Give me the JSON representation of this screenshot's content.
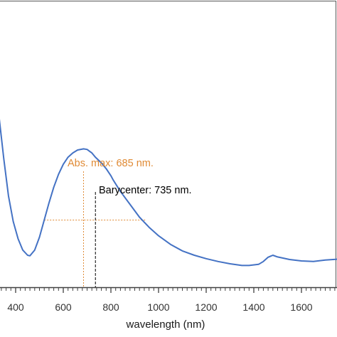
{
  "chart_data": {
    "type": "line",
    "xlabel": "wavelength (nm)",
    "ylabel": "",
    "xlim": [
      310,
      1780
    ],
    "ylim": [
      0,
      1
    ],
    "y_axis_visible": false,
    "grid": false,
    "legend": "none",
    "x_ticks": [
      400,
      600,
      800,
      1000,
      1200,
      1400,
      1600
    ],
    "x_tick_labels": [
      "400",
      "600",
      "800",
      "1000",
      "1200",
      "1400",
      "1600"
    ],
    "x_minor_tick_step": 20,
    "series": [
      {
        "color": "#4472c4",
        "x": [
          310,
          330,
          350,
          370,
          390,
          410,
          430,
          450,
          460,
          480,
          500,
          520,
          540,
          560,
          580,
          600,
          620,
          640,
          660,
          685,
          700,
          720,
          735,
          760,
          780,
          800,
          810,
          840,
          880,
          920,
          960,
          1000,
          1050,
          1100,
          1150,
          1200,
          1250,
          1300,
          1350,
          1380,
          1420,
          1440,
          1460,
          1480,
          1500,
          1550,
          1600,
          1650,
          1700,
          1780
        ],
        "y": [
          0.75,
          0.6,
          0.45,
          0.32,
          0.23,
          0.17,
          0.13,
          0.112,
          0.11,
          0.13,
          0.175,
          0.235,
          0.295,
          0.35,
          0.395,
          0.43,
          0.455,
          0.47,
          0.48,
          0.484,
          0.482,
          0.47,
          0.455,
          0.435,
          0.415,
          0.39,
          0.375,
          0.335,
          0.29,
          0.245,
          0.21,
          0.18,
          0.15,
          0.127,
          0.112,
          0.1,
          0.09,
          0.082,
          0.076,
          0.076,
          0.08,
          0.09,
          0.105,
          0.112,
          0.106,
          0.097,
          0.092,
          0.09,
          0.095,
          0.1
        ]
      }
    ],
    "annotations": [
      {
        "text": "Abs. max: 685 nm.",
        "color": "#e08a34",
        "x": 685,
        "y": 0.484,
        "line_style": "dashed"
      },
      {
        "text": "Barycenter: 735 nm.",
        "color": "#000000",
        "x": 735,
        "line_style": "dashed"
      }
    ],
    "crosshair": {
      "color": "#e08a34",
      "x_from": 520,
      "x_to": 950,
      "y": 0.235
    }
  }
}
